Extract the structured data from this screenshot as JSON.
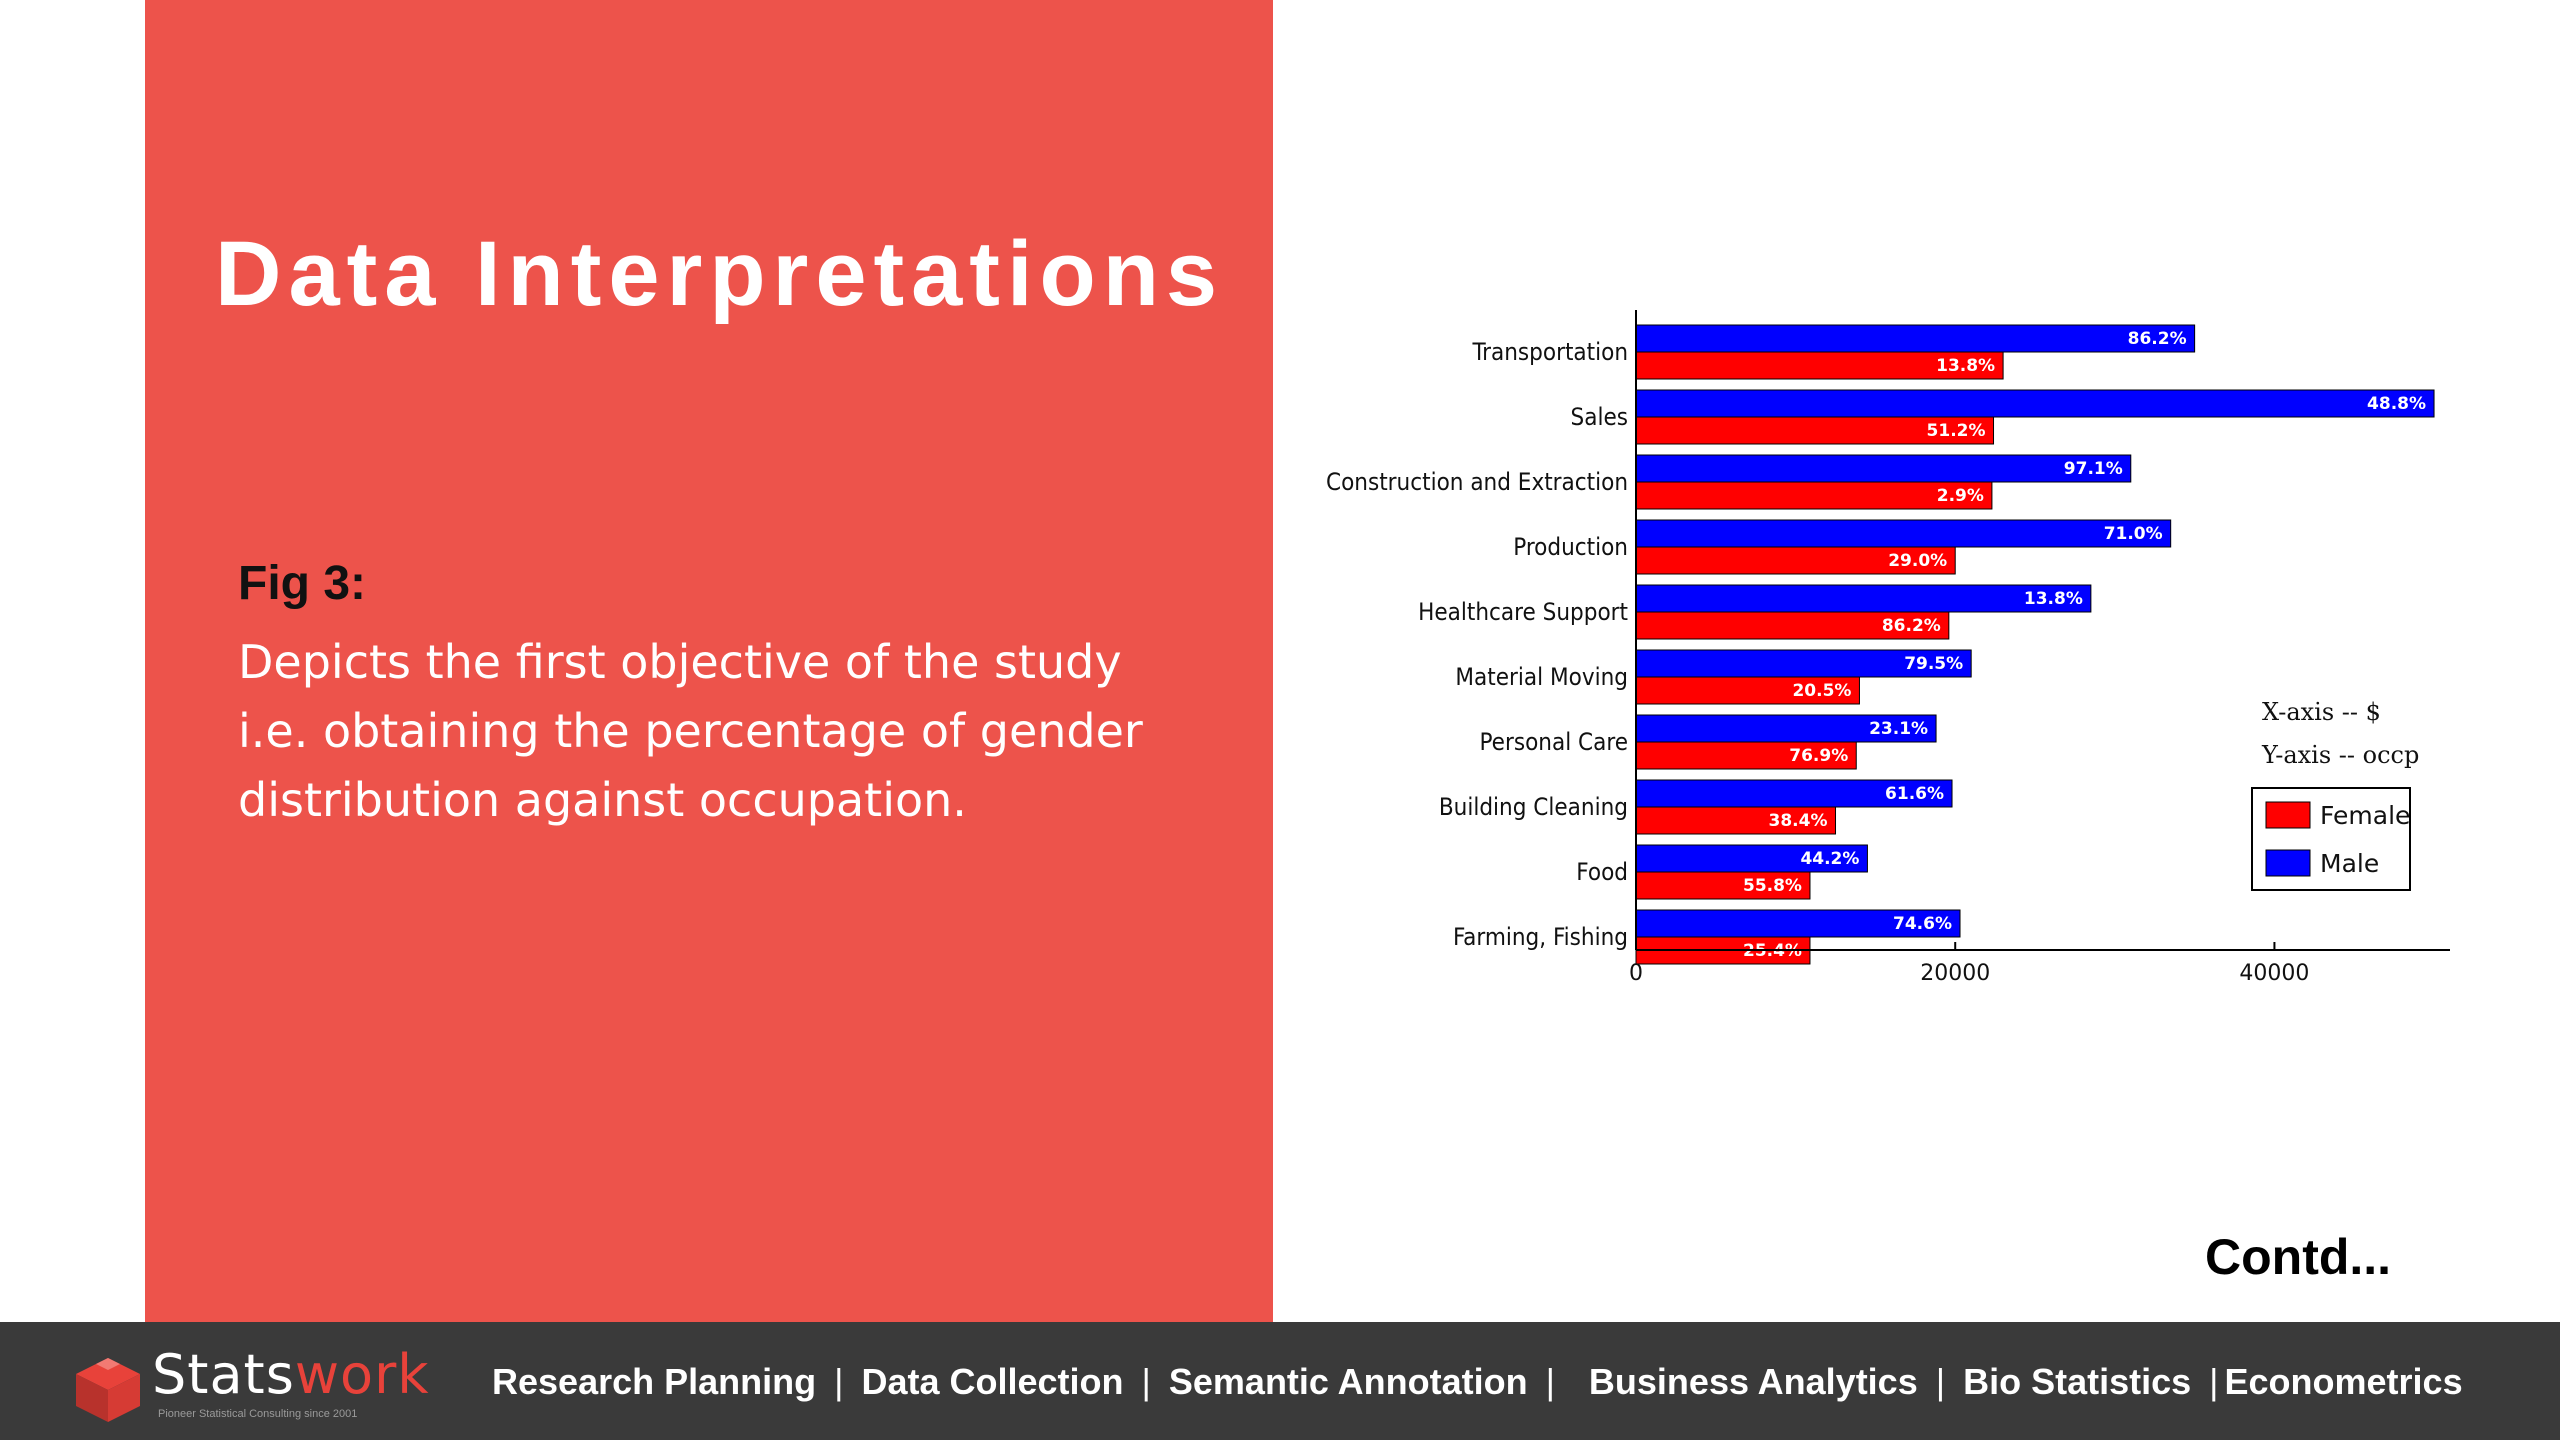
{
  "slide": {
    "title": "Data Interpretations",
    "fig_label": "Fig 3:",
    "fig_caption": "Depicts the first objective of the study i.e. obtaining the percentage of gender distribution against occupation.",
    "contd": "Contd...",
    "colors": {
      "panel": "#ed534b",
      "footer": "#3a3a3a",
      "brand_red": "#e8423a"
    }
  },
  "footer": {
    "logo_stats": "Stats",
    "logo_work": "work",
    "logo_tagline": "Pioneer Statistical Consulting since 2001",
    "nav": [
      "Research Planning",
      "Data Collection",
      "Semantic Annotation",
      "Business Analytics",
      "Bio Statistics",
      "Econometrics"
    ],
    "separator": "|"
  },
  "chart_data": {
    "type": "bar",
    "orientation": "horizontal",
    "categories": [
      "Transportation",
      "Sales",
      "Construction and Extraction",
      "Production",
      "Healthcare Support",
      "Material Moving",
      "Personal Care",
      "Building Cleaning",
      "Food",
      "Farming, Fishing"
    ],
    "series": [
      {
        "name": "Male",
        "color": "#0000ff",
        "values": [
          35000,
          50000,
          31000,
          33500,
          28500,
          21000,
          18800,
          19800,
          14500,
          20300
        ],
        "labels": [
          "86.2%",
          "48.8%",
          "97.1%",
          "71.0%",
          "13.8%",
          "79.5%",
          "23.1%",
          "61.6%",
          "44.2%",
          "74.6%"
        ]
      },
      {
        "name": "Female",
        "color": "#ff0000",
        "values": [
          23000,
          22400,
          22300,
          20000,
          19600,
          14000,
          13800,
          12500,
          10900,
          10900
        ],
        "labels": [
          "13.8%",
          "51.2%",
          "2.9%",
          "29.0%",
          "86.2%",
          "20.5%",
          "76.9%",
          "38.4%",
          "55.8%",
          "25.4%"
        ]
      }
    ],
    "xticks": [
      0,
      20000,
      40000
    ],
    "xlim": [
      0,
      51000
    ],
    "annotations": [
      "X-axis -- $",
      "Y-axis -- occp"
    ],
    "legend": {
      "position": "right",
      "entries": [
        "Female",
        "Male"
      ]
    },
    "grid": false
  }
}
